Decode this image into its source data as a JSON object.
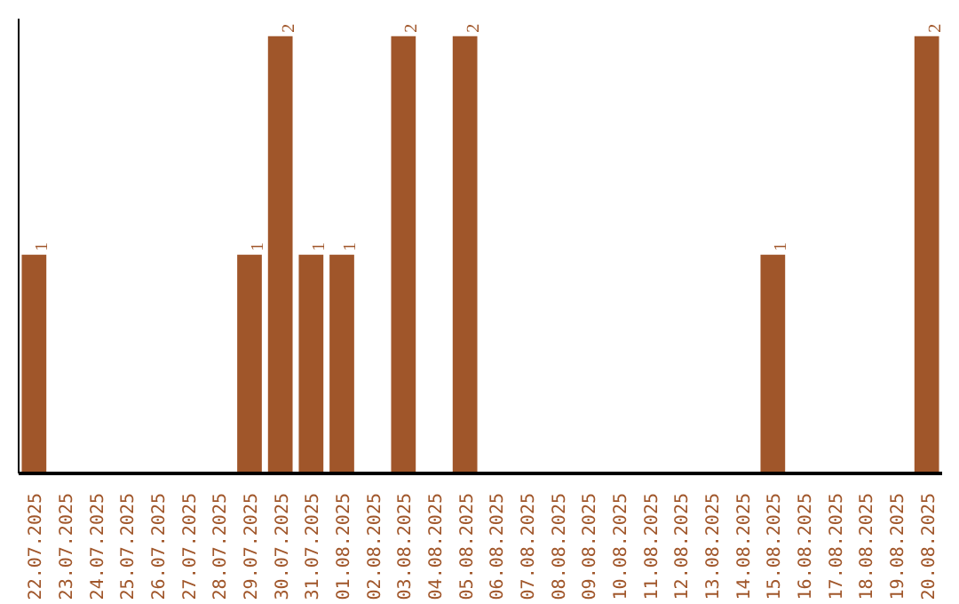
{
  "chart_data": {
    "type": "bar",
    "categories": [
      "22.07.2025",
      "23.07.2025",
      "24.07.2025",
      "25.07.2025",
      "26.07.2025",
      "27.07.2025",
      "28.07.2025",
      "29.07.2025",
      "30.07.2025",
      "31.07.2025",
      "01.08.2025",
      "02.08.2025",
      "03.08.2025",
      "04.08.2025",
      "05.08.2025",
      "06.08.2025",
      "07.08.2025",
      "08.08.2025",
      "09.08.2025",
      "10.08.2025",
      "11.08.2025",
      "12.08.2025",
      "13.08.2025",
      "14.08.2025",
      "15.08.2025",
      "16.08.2025",
      "17.08.2025",
      "18.08.2025",
      "19.08.2025",
      "20.08.2025"
    ],
    "values": [
      1,
      0,
      0,
      0,
      0,
      0,
      0,
      1,
      2,
      1,
      1,
      0,
      2,
      0,
      2,
      0,
      0,
      0,
      0,
      0,
      0,
      0,
      0,
      0,
      1,
      0,
      0,
      0,
      0,
      2
    ],
    "value_labels": [
      "1",
      null,
      null,
      null,
      null,
      null,
      null,
      "1",
      "2",
      "1",
      "1",
      null,
      "2",
      null,
      "2",
      null,
      null,
      null,
      null,
      null,
      null,
      null,
      null,
      null,
      "1",
      null,
      null,
      null,
      null,
      "2"
    ],
    "color": "#a0562a",
    "grid": false,
    "tick_labels": "x"
  }
}
